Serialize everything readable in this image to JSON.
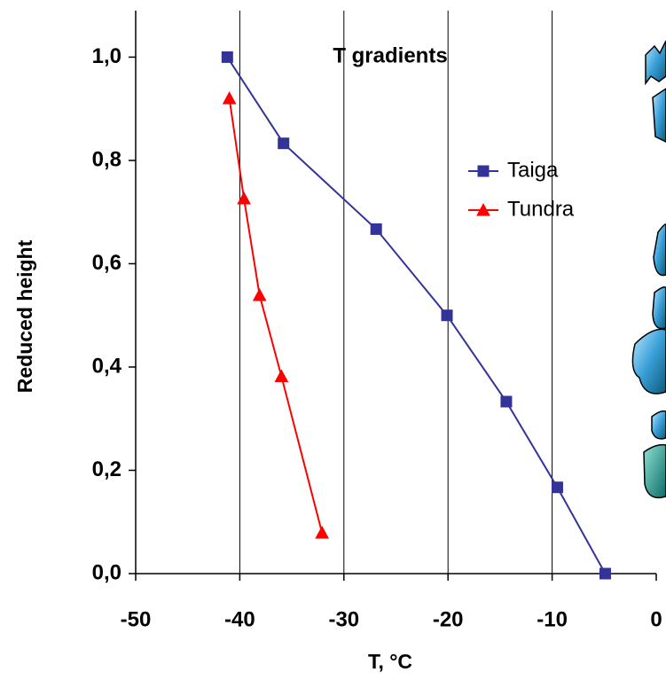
{
  "chart_data": {
    "type": "line",
    "title": "T gradients",
    "x_label": "T, °C",
    "y_label": "Reduced height",
    "xlim": [
      -50,
      0
    ],
    "ylim": [
      0,
      1.09
    ],
    "xticks": [
      -50,
      -40,
      -30,
      -20,
      -10,
      0
    ],
    "yticks": [
      {
        "value": 0,
        "label": "0,0"
      },
      {
        "value": 0.2,
        "label": "0,2"
      },
      {
        "value": 0.4,
        "label": "0,4"
      },
      {
        "value": 0.6,
        "label": "0,6"
      },
      {
        "value": 0.8,
        "label": "0,8"
      },
      {
        "value": 1.0,
        "label": "1,0"
      }
    ],
    "grid": true,
    "series": [
      {
        "name": "Taiga",
        "color": "#333399",
        "marker": "square",
        "x": [
          -41.2,
          -35.8,
          -26.9,
          -20.1,
          -14.4,
          -9.5,
          -4.9
        ],
        "values": [
          1.0,
          0.833,
          0.667,
          0.5,
          0.333,
          0.167,
          0.0
        ]
      },
      {
        "name": "Tundra",
        "color": "#ff0000",
        "marker": "triangle",
        "x": [
          -41.0,
          -39.6,
          -38.1,
          -36.0,
          -32.1
        ],
        "values": [
          0.92,
          0.726,
          0.539,
          0.382,
          0.079
        ]
      }
    ]
  }
}
